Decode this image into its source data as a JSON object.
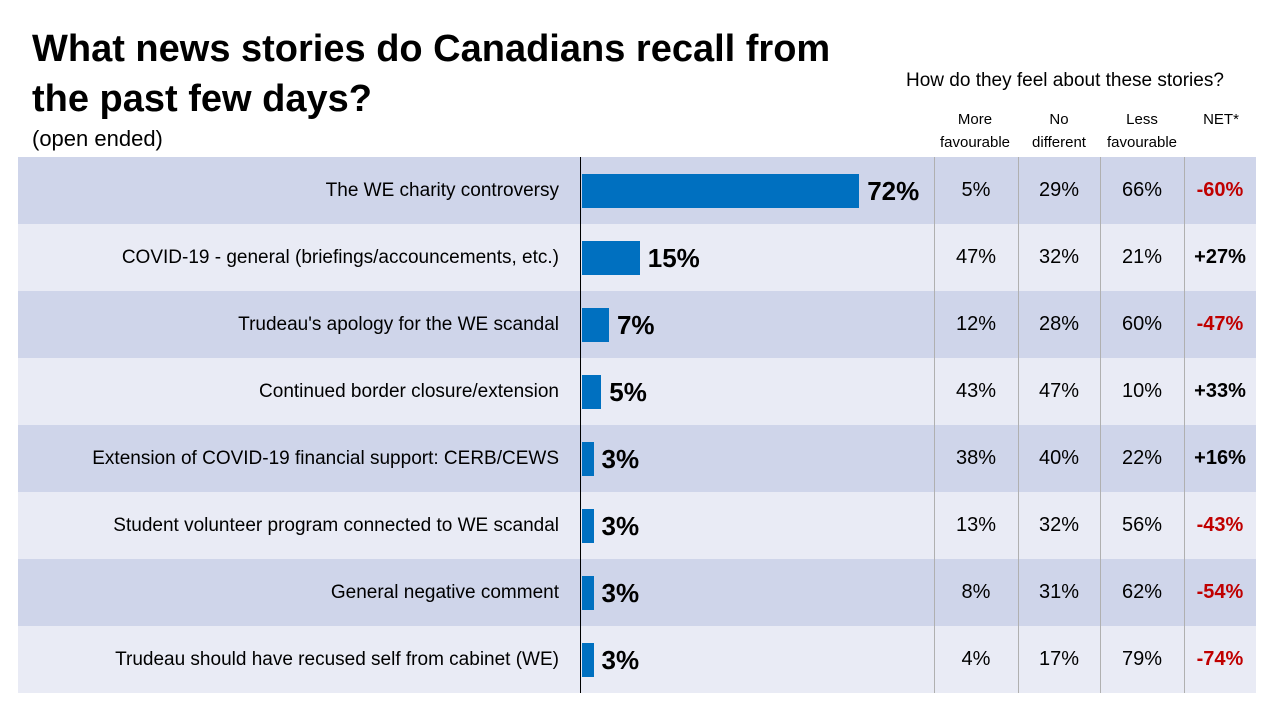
{
  "title": "What news stories do Canadians recall from the past few days?",
  "subtitle": "(open ended)",
  "side_header": "How do they feel about these stories?",
  "columns": [
    {
      "line1": "More",
      "line2": "favourable"
    },
    {
      "line1": "No",
      "line2": "different"
    },
    {
      "line1": "Less",
      "line2": "favourable"
    },
    {
      "line1": "NET*",
      "line2": ""
    }
  ],
  "colors": {
    "bar": "#0070c0",
    "row_dark": "#cfd5ea",
    "row_light": "#e9ebf5",
    "net_negative": "#c00000",
    "net_positive": "#000000"
  },
  "chart_data": {
    "type": "bar",
    "orientation": "horizontal",
    "title": "What news stories do Canadians recall from the past few days?",
    "categories": [
      "The WE charity controversy",
      "COVID-19 - general (briefings/accouncements, etc.)",
      "Trudeau's apology for the WE scandal",
      "Continued border closure/extension",
      "Extension of COVID-19 financial support: CERB/CEWS",
      "Student volunteer program connected to WE scandal",
      "General negative comment",
      "Trudeau should have recused self from cabinet (WE)"
    ],
    "values": [
      72,
      15,
      7,
      5,
      3,
      3,
      3,
      3
    ],
    "value_labels": [
      "72%",
      "15%",
      "7%",
      "5%",
      "3%",
      "3%",
      "3%",
      "3%"
    ],
    "unit": "%",
    "table": {
      "headers": [
        "More favourable",
        "No different",
        "Less favourable",
        "NET*"
      ],
      "rows": [
        [
          "5%",
          "29%",
          "66%",
          "-60%"
        ],
        [
          "47%",
          "32%",
          "21%",
          "+27%"
        ],
        [
          "12%",
          "28%",
          "60%",
          "-47%"
        ],
        [
          "43%",
          "47%",
          "10%",
          "+33%"
        ],
        [
          "38%",
          "40%",
          "22%",
          "+16%"
        ],
        [
          "13%",
          "32%",
          "56%",
          "-43%"
        ],
        [
          "8%",
          "31%",
          "62%",
          "-54%"
        ],
        [
          "4%",
          "17%",
          "79%",
          "-74%"
        ]
      ]
    }
  }
}
